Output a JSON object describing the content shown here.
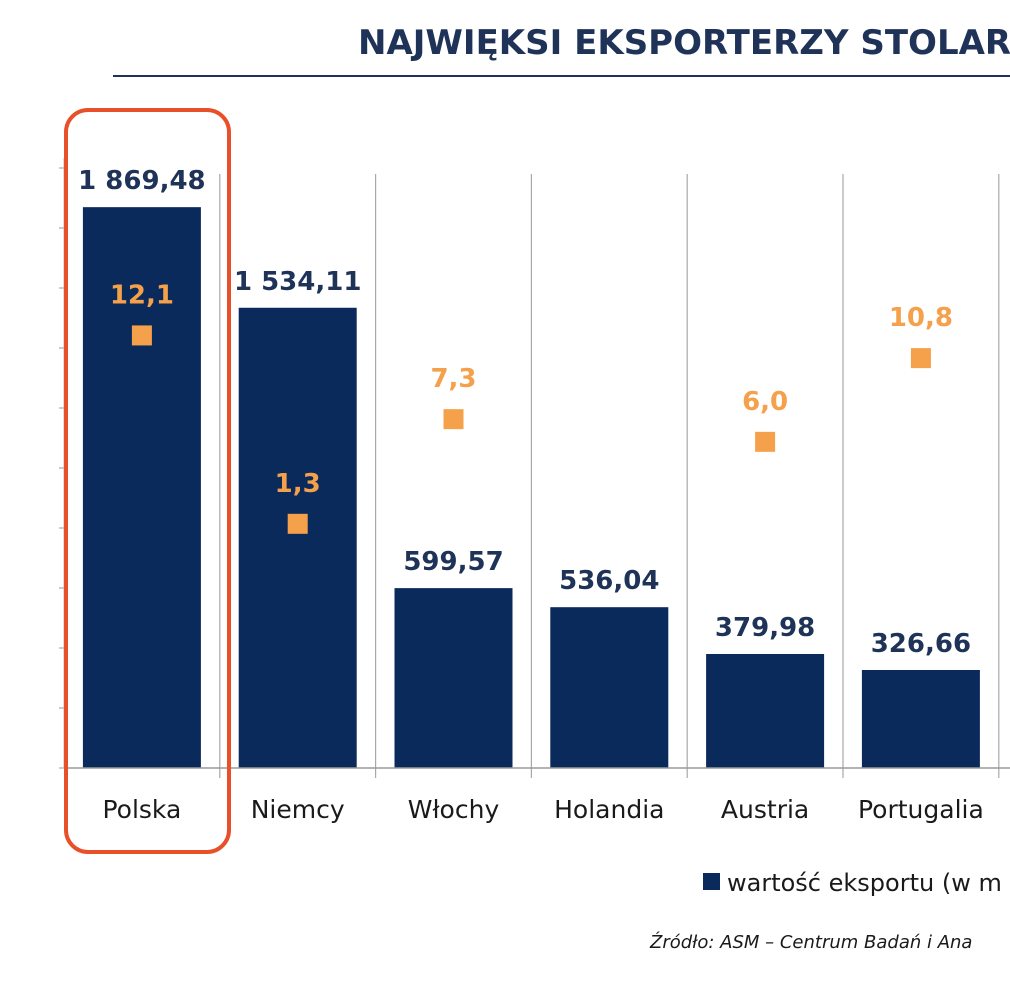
{
  "chart_data": {
    "type": "bar",
    "title": "NAJWIĘKSI EKSPORTERZY STOLARK",
    "categories": [
      "Polska",
      "Niemcy",
      "Włochy",
      "Holandia",
      "Austria",
      "Portugalia"
    ],
    "series": [
      {
        "name": "wartość eksportu (w m",
        "kind": "bar",
        "values": [
          1869.48,
          1534.11,
          599.57,
          536.04,
          379.98,
          326.66
        ],
        "labels": [
          "1 869,48",
          "1 534,11",
          "599,57",
          "536,04",
          "379,98",
          "326,66"
        ],
        "color": "#0a2a5c"
      },
      {
        "kind": "marker",
        "values": [
          12.1,
          1.3,
          7.3,
          null,
          6.0,
          10.8
        ],
        "labels": [
          "12,1",
          "1,3",
          "7,3",
          null,
          "6,0",
          "10,8"
        ],
        "color": "#f5a04a"
      }
    ],
    "ylim": [
      0,
      2000
    ],
    "marker_ylim": [
      -12.7,
      21.7
    ],
    "grid": true,
    "highlight_category": "Polska",
    "highlight_color": "#e8502a",
    "legend_placement": "bottom-right",
    "source": "Źródło: ASM – Centrum Badań i Ana"
  }
}
